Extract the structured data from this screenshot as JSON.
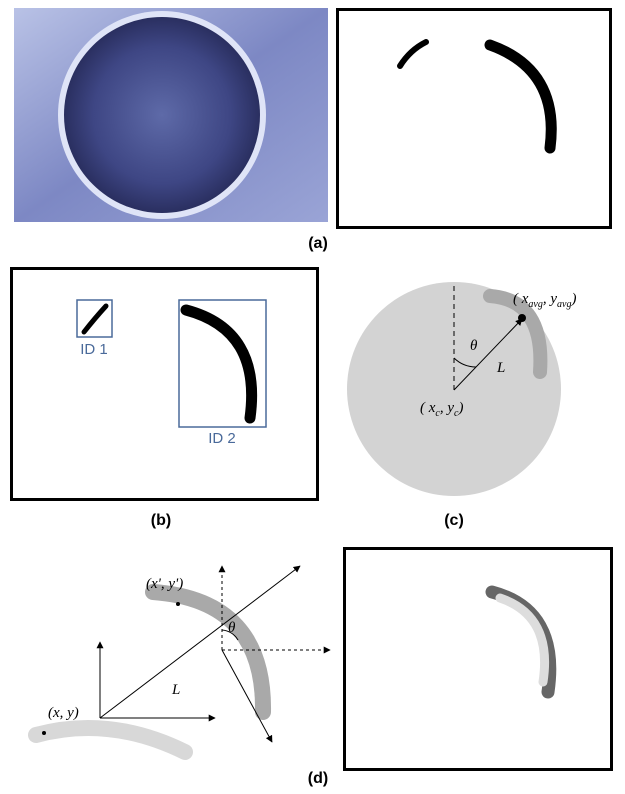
{
  "panel_a": {
    "caption": "(a)"
  },
  "panel_b": {
    "caption": "(b)",
    "id1": "ID 1",
    "id2": "ID 2"
  },
  "panel_c": {
    "caption": "(c)",
    "avg_label": [
      {
        "t": "( x"
      },
      {
        "t": "avg",
        "sub": true
      },
      {
        "t": ", y"
      },
      {
        "t": "avg",
        "sub": true
      },
      {
        "t": ")"
      }
    ],
    "theta": "θ",
    "length": "L",
    "center_label": [
      {
        "t": "( x"
      },
      {
        "t": "c",
        "sub": true
      },
      {
        "t": ", y"
      },
      {
        "t": "c",
        "sub": true
      },
      {
        "t": ")"
      }
    ]
  },
  "panel_d": {
    "caption": "(d)",
    "prime_label": "(x', y')",
    "theta": "θ",
    "length": "L",
    "point_label": "(x, y)"
  }
}
